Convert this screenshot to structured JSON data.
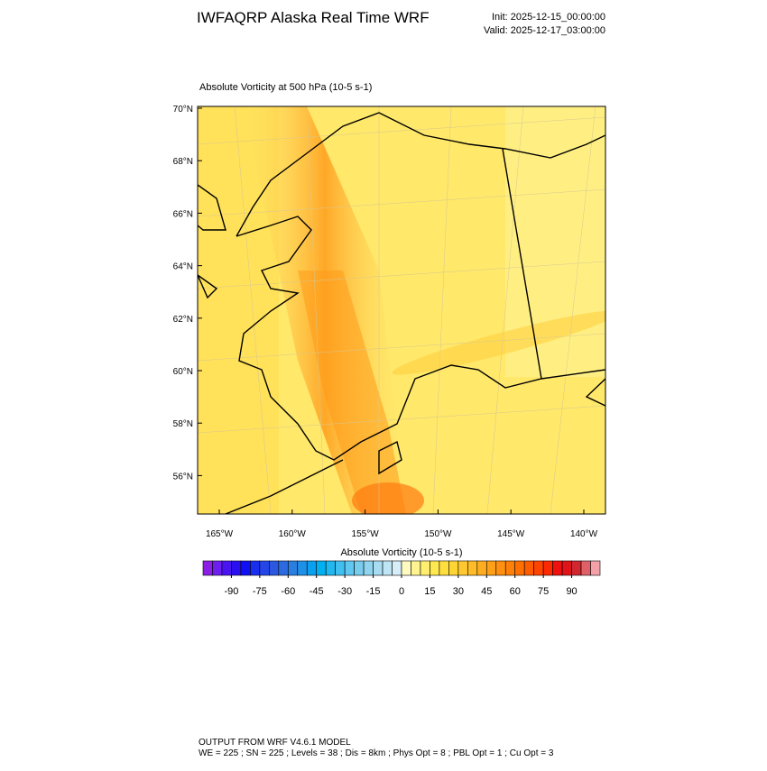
{
  "header": {
    "title": "IWFAQRP Alaska Real Time WRF",
    "init": "Init: 2025-12-15_00:00:00",
    "valid": "Valid: 2025-12-17_03:00:00"
  },
  "plot": {
    "title": "Absolute Vorticity at 500 hPa   (10-5 s-1)",
    "lat_labels": [
      "70°N",
      "68°N",
      "66°N",
      "64°N",
      "62°N",
      "60°N",
      "58°N",
      "56°N"
    ],
    "lon_labels": [
      "165°W",
      "160°W",
      "155°W",
      "150°W",
      "145°W",
      "140°W"
    ]
  },
  "colorbar": {
    "title": "Absolute Vorticity  (10-5 s-1)",
    "range": [
      -105,
      105
    ],
    "ticks": [
      -90,
      -75,
      -60,
      -45,
      -30,
      -15,
      0,
      15,
      30,
      45,
      60,
      75,
      90
    ],
    "colors": [
      "#8b1fe6",
      "#6f1ef0",
      "#4a14f0",
      "#2a10f0",
      "#1010f5",
      "#1a2ef0",
      "#2545e8",
      "#2a58e0",
      "#2b6ae0",
      "#2a7ee0",
      "#1e90e8",
      "#0aa0f0",
      "#00b0f0",
      "#20b8f0",
      "#40c0f0",
      "#60c8f0",
      "#78ccec",
      "#90d4f0",
      "#a8dcf2",
      "#bfe4f4",
      "#d6eef8",
      "#fffac0",
      "#fff490",
      "#ffee70",
      "#ffe850",
      "#ffdf40",
      "#ffd535",
      "#ffc830",
      "#ffbb28",
      "#ffad20",
      "#ffa018",
      "#ff9010",
      "#ff8008",
      "#ff7000",
      "#ff5c00",
      "#ff4400",
      "#ff2a00",
      "#f01010",
      "#e01418",
      "#d02830",
      "#e06068",
      "#f4a0a8"
    ]
  },
  "footer": {
    "line1": "OUTPUT FROM WRF V4.6.1 MODEL",
    "line2": "WE = 225 ; SN = 225 ; Levels = 38 ; Dis = 8km ; Phys Opt = 8 ; PBL Opt = 1 ; Cu Opt = 3"
  }
}
